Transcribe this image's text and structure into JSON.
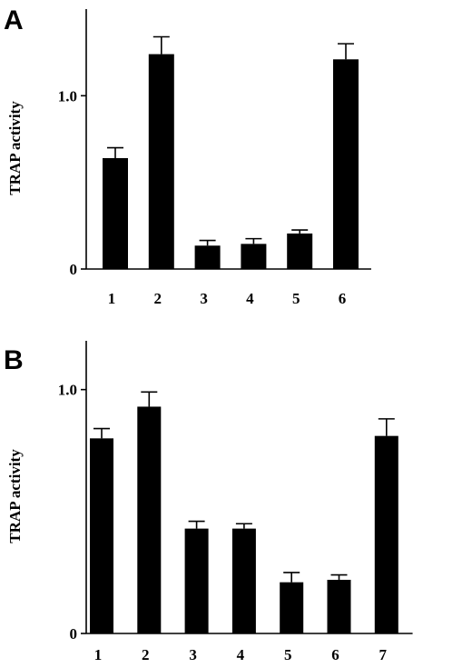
{
  "chart_data": [
    {
      "panel": "A",
      "type": "bar",
      "ylabel": "TRAP activity",
      "ylim": [
        0,
        1.5
      ],
      "yticks": [
        {
          "value": 0,
          "label": "0"
        },
        {
          "value": 1.0,
          "label": "1.0"
        }
      ],
      "categories": [
        "1",
        "2",
        "3",
        "4",
        "5",
        "6"
      ],
      "values": [
        0.64,
        1.24,
        0.135,
        0.145,
        0.205,
        1.21
      ],
      "errors": [
        0.06,
        0.1,
        0.03,
        0.03,
        0.02,
        0.09
      ],
      "grid": false
    },
    {
      "panel": "B",
      "type": "bar",
      "ylabel": "TRAP activity",
      "ylim": [
        0,
        1.2
      ],
      "yticks": [
        {
          "value": 0,
          "label": "0"
        },
        {
          "value": 1.0,
          "label": "1.0"
        }
      ],
      "categories": [
        "1",
        "2",
        "3",
        "4",
        "5",
        "6",
        "7"
      ],
      "values": [
        0.8,
        0.93,
        0.43,
        0.43,
        0.21,
        0.22,
        0.81
      ],
      "errors": [
        0.04,
        0.06,
        0.03,
        0.02,
        0.04,
        0.02,
        0.07
      ],
      "grid": false
    }
  ]
}
